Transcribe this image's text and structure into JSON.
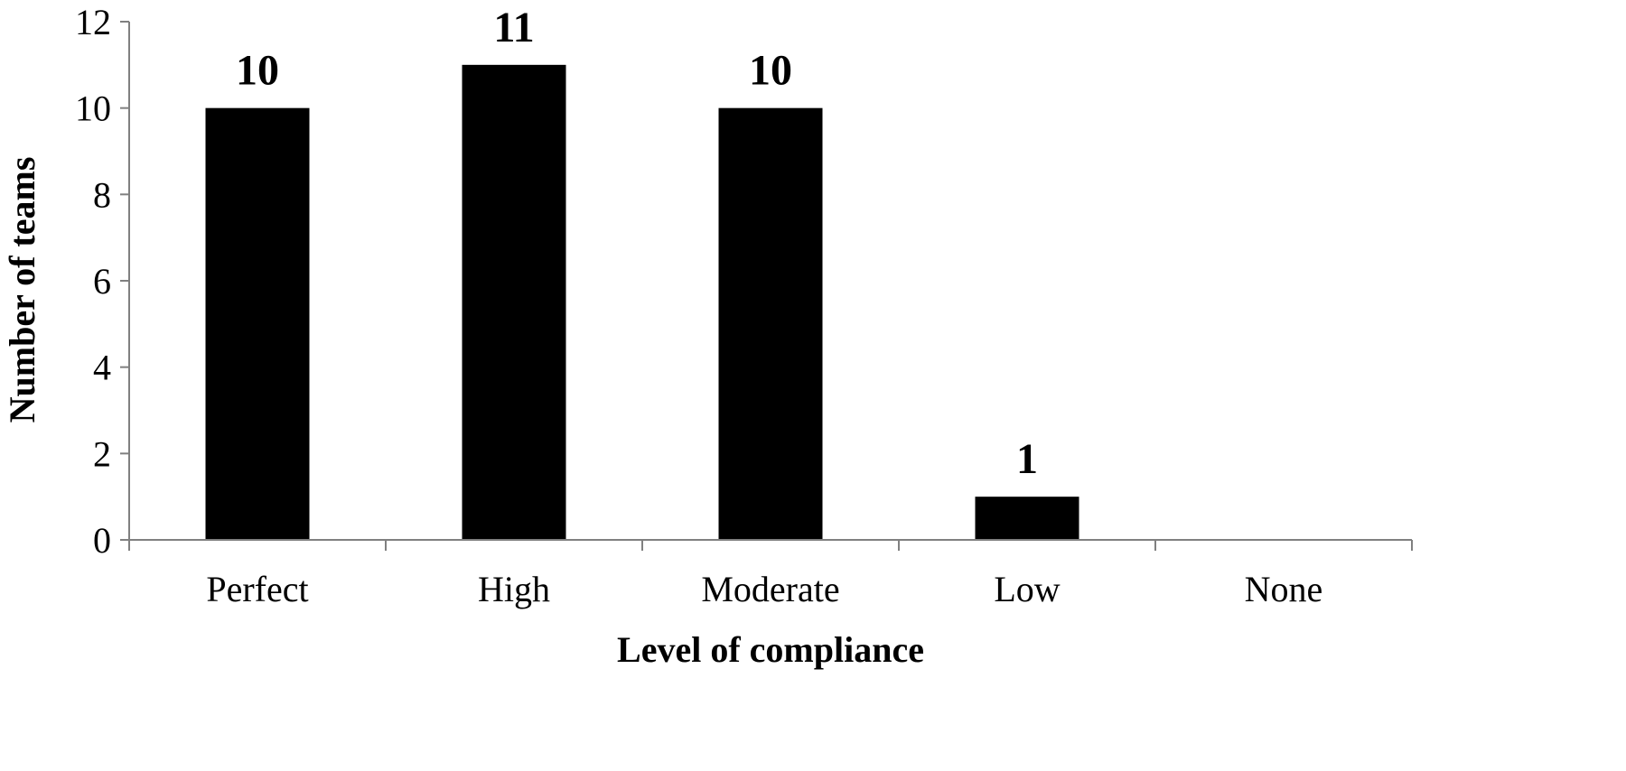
{
  "chart_data": {
    "type": "bar",
    "categories": [
      "Perfect",
      "High",
      "Moderate",
      "Low",
      "None"
    ],
    "values": [
      10,
      11,
      10,
      1,
      0
    ],
    "data_labels": [
      "10",
      "11",
      "10",
      "1",
      ""
    ],
    "title": "",
    "xlabel": "Level of compliance",
    "ylabel": "Number of teams",
    "ylim": [
      0,
      12
    ],
    "yticks": [
      0,
      2,
      4,
      6,
      8,
      10,
      12
    ],
    "grid": false,
    "legend": "none",
    "bar_color": "#000000",
    "axis_color": "#808080"
  }
}
